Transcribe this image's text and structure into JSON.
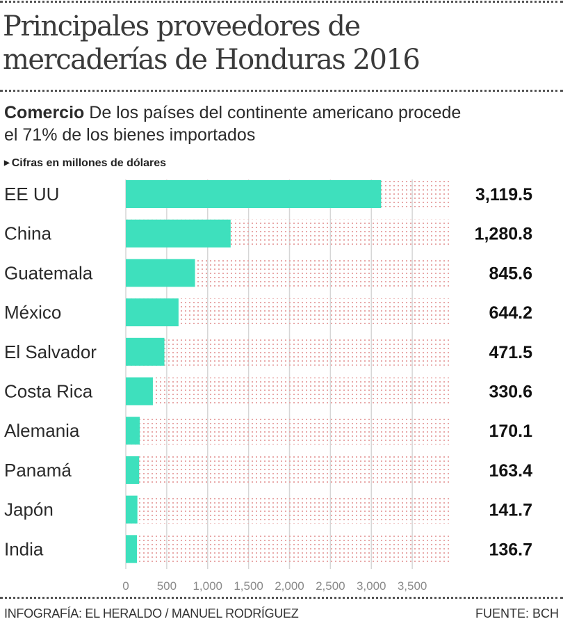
{
  "header": {
    "title_line1": "Principales proveedores de",
    "title_line2": "mercaderías de Honduras 2016",
    "subtitle_bold": "Comercio",
    "subtitle_line1": " De los países del continente americano procede",
    "subtitle_line2": "el  71% de los bienes importados",
    "note": "Cifras en millones de dólares",
    "note_icon": "triangle-right-icon"
  },
  "footer": {
    "credit": "INFOGRAFÍA: EL HERALDO / MANUEL RODRÍGUEZ",
    "source": "FUENTE: BCH"
  },
  "colors": {
    "bar": "#3ee0bd",
    "dots": "#e8b4b4",
    "grid": "#d6d6d6"
  },
  "chart_data": {
    "type": "bar",
    "orientation": "horizontal",
    "title": "Principales proveedores de mercaderías de Honduras 2016",
    "xlabel": "",
    "ylabel": "",
    "units": "millones de dólares",
    "categories": [
      "EE UU",
      "China",
      "Guatemala",
      "México",
      "El Salvador",
      "Costa Rica",
      "Alemania",
      "Panamá",
      "Japón",
      "India"
    ],
    "values": [
      3119.5,
      1280.8,
      845.6,
      644.2,
      471.5,
      330.6,
      170.1,
      163.4,
      141.7,
      136.7
    ],
    "value_labels": [
      "3,119.5",
      "1,280.8",
      "845.6",
      "644.2",
      "471.5",
      "330.6",
      "170.1",
      "163.4",
      "141.7",
      "136.7"
    ],
    "xlim": [
      0,
      4000
    ],
    "xticks": [
      0,
      500,
      1000,
      1500,
      2000,
      2500,
      3000,
      3500
    ],
    "xtick_labels": [
      "0",
      "500",
      "1,000",
      "1,500",
      "2,000",
      "2,500",
      "3,000",
      "3,500"
    ],
    "grid": true
  }
}
